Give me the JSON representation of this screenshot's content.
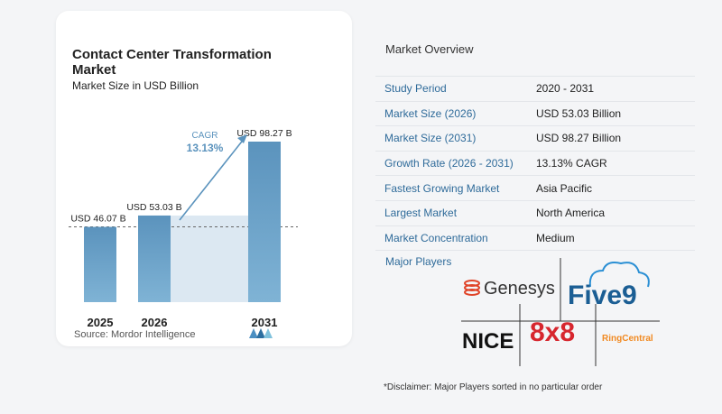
{
  "chart_data": {
    "type": "bar",
    "title": "Contact Center Transformation Market",
    "subtitle": "Market Size in USD Billion",
    "categories": [
      "2025",
      "2026",
      "2031"
    ],
    "values": [
      46.07,
      53.03,
      98.27
    ],
    "value_labels": [
      "USD 46.07 B",
      "USD 53.03 B",
      "USD 98.27 B"
    ],
    "cagr_label": "CAGR",
    "cagr_value": "13.13%",
    "colors": {
      "bar": "#5b93bd",
      "bar_light": "#7fb3d5",
      "shade": "#dce8f2",
      "arrow": "#5b93bd"
    }
  },
  "source": "Source:  Mordor Intelligence",
  "overview": {
    "title": "Market Overview",
    "rows": [
      {
        "label": "Study Period",
        "value": "2020 - 2031"
      },
      {
        "label": "Market Size (2026)",
        "value": "USD 53.03 Billion"
      },
      {
        "label": "Market Size (2031)",
        "value": "USD 98.27 Billion"
      },
      {
        "label": "Growth Rate (2026 - 2031)",
        "value": "13.13% CAGR"
      },
      {
        "label": "Fastest Growing Market",
        "value": "Asia Pacific"
      },
      {
        "label": "Largest Market",
        "value": "North America"
      },
      {
        "label": "Market Concentration",
        "value": "Medium"
      }
    ]
  },
  "players": {
    "title": "Major Players",
    "logos": [
      "Genesys",
      "Five9",
      "NICE",
      "8x8",
      "RingCentral"
    ]
  },
  "disclaimer": "*Disclaimer: Major Players sorted in no particular order"
}
